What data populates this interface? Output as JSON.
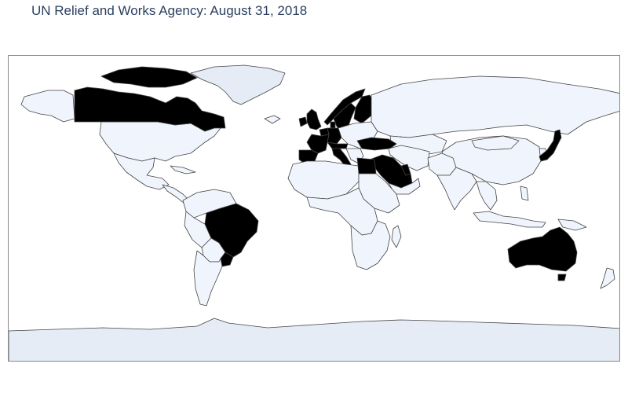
{
  "title": "UN Relief and Works Agency: August 31, 2018",
  "colors": {
    "highlighted": "#000000",
    "other_land": "#f0f5fd",
    "ice": "#e5ecf6",
    "border": "#444444",
    "frame": "#888888",
    "title": "#2a3f5f"
  },
  "map": {
    "projection": "equirectangular",
    "highlighted_countries": [
      "Canada",
      "Brazil",
      "Uruguay",
      "Australia",
      "Japan",
      "Saudi Arabia",
      "Egypt",
      "Turkey",
      "Spain",
      "France",
      "United Kingdom",
      "Ireland",
      "Norway",
      "Sweden",
      "Finland",
      "Germany",
      "Netherlands",
      "Belgium",
      "Italy",
      "Switzerland",
      "Austria",
      "Denmark",
      "Kuwait",
      "Qatar",
      "United Arab Emirates",
      "Oman"
    ]
  }
}
